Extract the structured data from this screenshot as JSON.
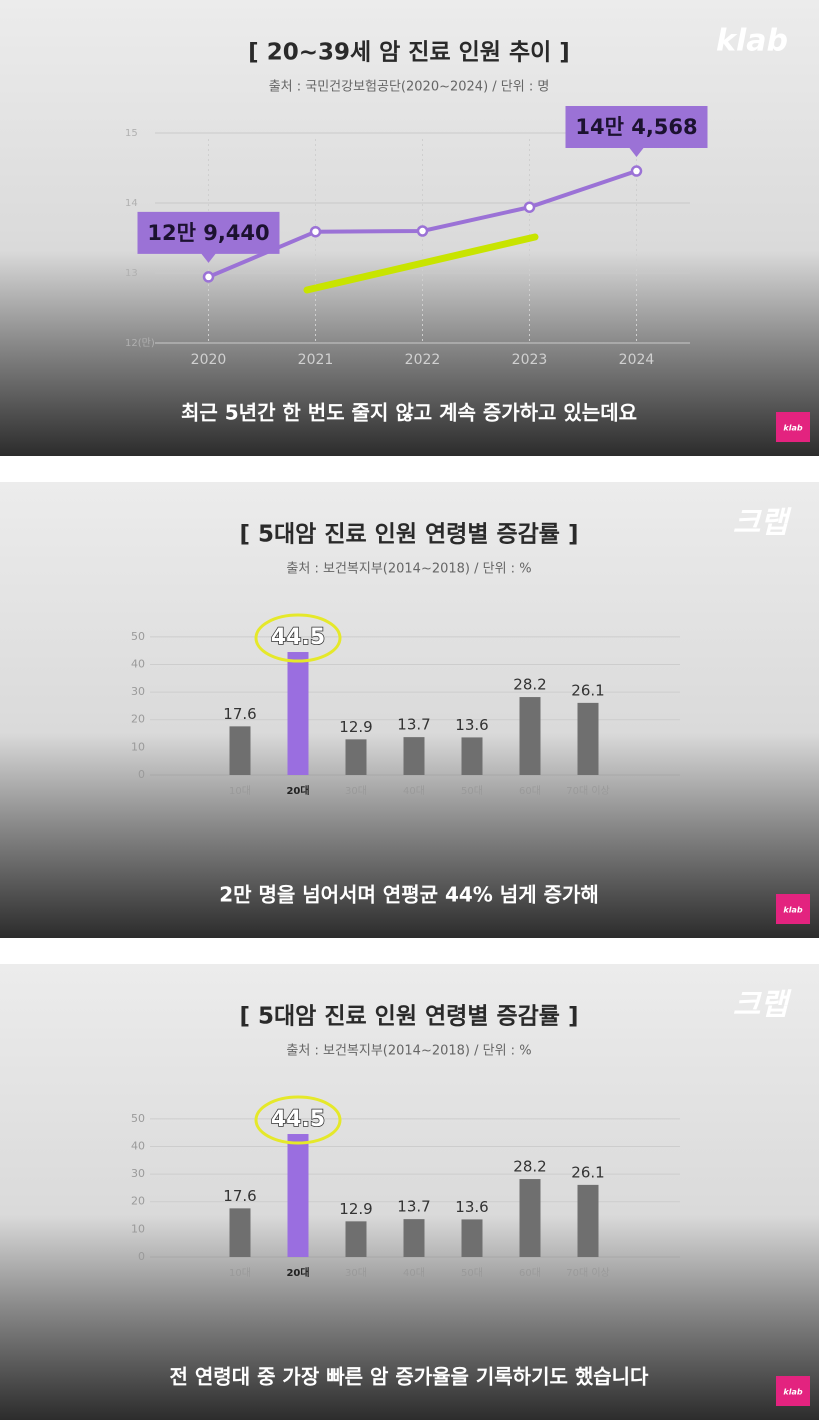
{
  "chart_data": [
    {
      "type": "line",
      "title": "[ 20~39세 암 진료 인원 추이 ]",
      "subtitle": "출처 : 국민건강보험공단(2020~2024) / 단위 : 명",
      "caption": "최근 5년간 한 번도 줄지 않고 계속 증가하고 있는데요",
      "logo": "klab",
      "badge": "klab",
      "categories": [
        "2020",
        "2021",
        "2022",
        "2023",
        "2024"
      ],
      "values": [
        12.944,
        13.59,
        13.6,
        13.94,
        14.4568
      ],
      "value_labels": [
        "12만 9,440",
        null,
        null,
        null,
        "14만 4,568"
      ],
      "color": "#9b72d6",
      "ylim": [
        12,
        15.2
      ],
      "yticks": [
        {
          "value": 12,
          "label": "12(만)"
        },
        13,
        14,
        15
      ],
      "grid": true
    },
    {
      "type": "bar",
      "title": "[ 5대암 진료 인원 연령별 증감률 ]",
      "subtitle": "출처 : 보건복지부(2014~2018) / 단위 : %",
      "caption": "2만 명을 넘어서며 연평균 44% 넘게 증가해",
      "logo": "크랩",
      "badge": "klab",
      "categories": [
        "10대",
        "20대",
        "30대",
        "40대",
        "50대",
        "60대",
        "70대 이상"
      ],
      "values": [
        17.6,
        44.5,
        12.9,
        13.7,
        13.6,
        28.2,
        26.1
      ],
      "color": "#6f6f6f",
      "highlight": 1,
      "highlight_color": "#9a6ee0",
      "ylim": [
        0,
        55
      ],
      "yticks": [
        0,
        10,
        20,
        30,
        40,
        50
      ],
      "grid": true
    },
    {
      "type": "bar",
      "title": "[ 5대암 진료 인원 연령별 증감률 ]",
      "subtitle": "출처 : 보건복지부(2014~2018) / 단위 : %",
      "caption": "전 연령대 중 가장 빠른 암 증가율을 기록하기도 했습니다",
      "logo": "크랩",
      "badge": "klab",
      "categories": [
        "10대",
        "20대",
        "30대",
        "40대",
        "50대",
        "60대",
        "70대 이상"
      ],
      "values": [
        17.6,
        44.5,
        12.9,
        13.7,
        13.6,
        28.2,
        26.1
      ],
      "color": "#6f6f6f",
      "highlight": 1,
      "highlight_color": "#9a6ee0",
      "ylim": [
        0,
        55
      ],
      "yticks": [
        0,
        10,
        20,
        30,
        40,
        50
      ],
      "grid": true
    }
  ]
}
